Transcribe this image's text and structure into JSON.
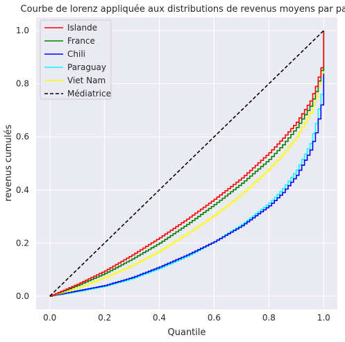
{
  "chart_data": {
    "type": "line",
    "title": "Courbe de lorenz appliquée aux distributions de revenus moyens par pays",
    "xlabel": "Quantile",
    "ylabel": "revenus cumulés",
    "xlim": [
      -0.05,
      1.05
    ],
    "ylim": [
      -0.05,
      1.05
    ],
    "xticks": [
      "0.0",
      "0.2",
      "0.4",
      "0.6",
      "0.8",
      "1.0"
    ],
    "yticks": [
      "0.0",
      "0.2",
      "0.4",
      "0.6",
      "0.8",
      "1.0"
    ],
    "grid": true,
    "legend_position": "top-left",
    "background": "#eaeaf2",
    "series": [
      {
        "name": "Islande",
        "color": "#ff0000",
        "style": "step",
        "x": [
          0,
          0.1,
          0.2,
          0.3,
          0.4,
          0.5,
          0.6,
          0.7,
          0.8,
          0.85,
          0.9,
          0.95,
          0.97,
          0.99,
          1.0
        ],
        "y": [
          0,
          0.045,
          0.095,
          0.155,
          0.22,
          0.29,
          0.365,
          0.445,
          0.54,
          0.595,
          0.655,
          0.735,
          0.79,
          0.86,
          1.0
        ]
      },
      {
        "name": "France",
        "color": "#008000",
        "style": "step",
        "x": [
          0,
          0.1,
          0.2,
          0.3,
          0.4,
          0.5,
          0.6,
          0.7,
          0.8,
          0.85,
          0.9,
          0.95,
          0.97,
          0.99,
          1.0
        ],
        "y": [
          0,
          0.04,
          0.085,
          0.14,
          0.2,
          0.27,
          0.345,
          0.425,
          0.515,
          0.57,
          0.635,
          0.715,
          0.77,
          0.85,
          1.0
        ]
      },
      {
        "name": "Chili",
        "color": "#0000ff",
        "style": "step",
        "x": [
          0,
          0.1,
          0.2,
          0.3,
          0.4,
          0.5,
          0.6,
          0.7,
          0.8,
          0.85,
          0.9,
          0.95,
          0.97,
          0.99,
          1.0
        ],
        "y": [
          0,
          0.02,
          0.04,
          0.07,
          0.11,
          0.155,
          0.205,
          0.265,
          0.34,
          0.39,
          0.455,
          0.55,
          0.615,
          0.72,
          1.0
        ]
      },
      {
        "name": "Paraguay",
        "color": "#00ffff",
        "style": "step",
        "x": [
          0,
          0.1,
          0.2,
          0.3,
          0.4,
          0.5,
          0.6,
          0.7,
          0.8,
          0.85,
          0.9,
          0.95,
          0.97,
          0.99,
          1.0
        ],
        "y": [
          0,
          0.017,
          0.037,
          0.066,
          0.105,
          0.15,
          0.205,
          0.27,
          0.35,
          0.405,
          0.475,
          0.575,
          0.65,
          0.76,
          1.0
        ]
      },
      {
        "name": "Viet Nam",
        "color": "#ffff00",
        "style": "step",
        "x": [
          0,
          0.1,
          0.2,
          0.3,
          0.4,
          0.5,
          0.6,
          0.7,
          0.8,
          0.85,
          0.9,
          0.95,
          0.97,
          0.99,
          1.0
        ],
        "y": [
          0,
          0.03,
          0.07,
          0.115,
          0.17,
          0.235,
          0.305,
          0.385,
          0.48,
          0.535,
          0.6,
          0.69,
          0.75,
          0.84,
          1.0
        ]
      },
      {
        "name": "Médiatrice",
        "color": "#000000",
        "style": "dashed",
        "x": [
          0,
          1
        ],
        "y": [
          0,
          1
        ]
      }
    ]
  }
}
